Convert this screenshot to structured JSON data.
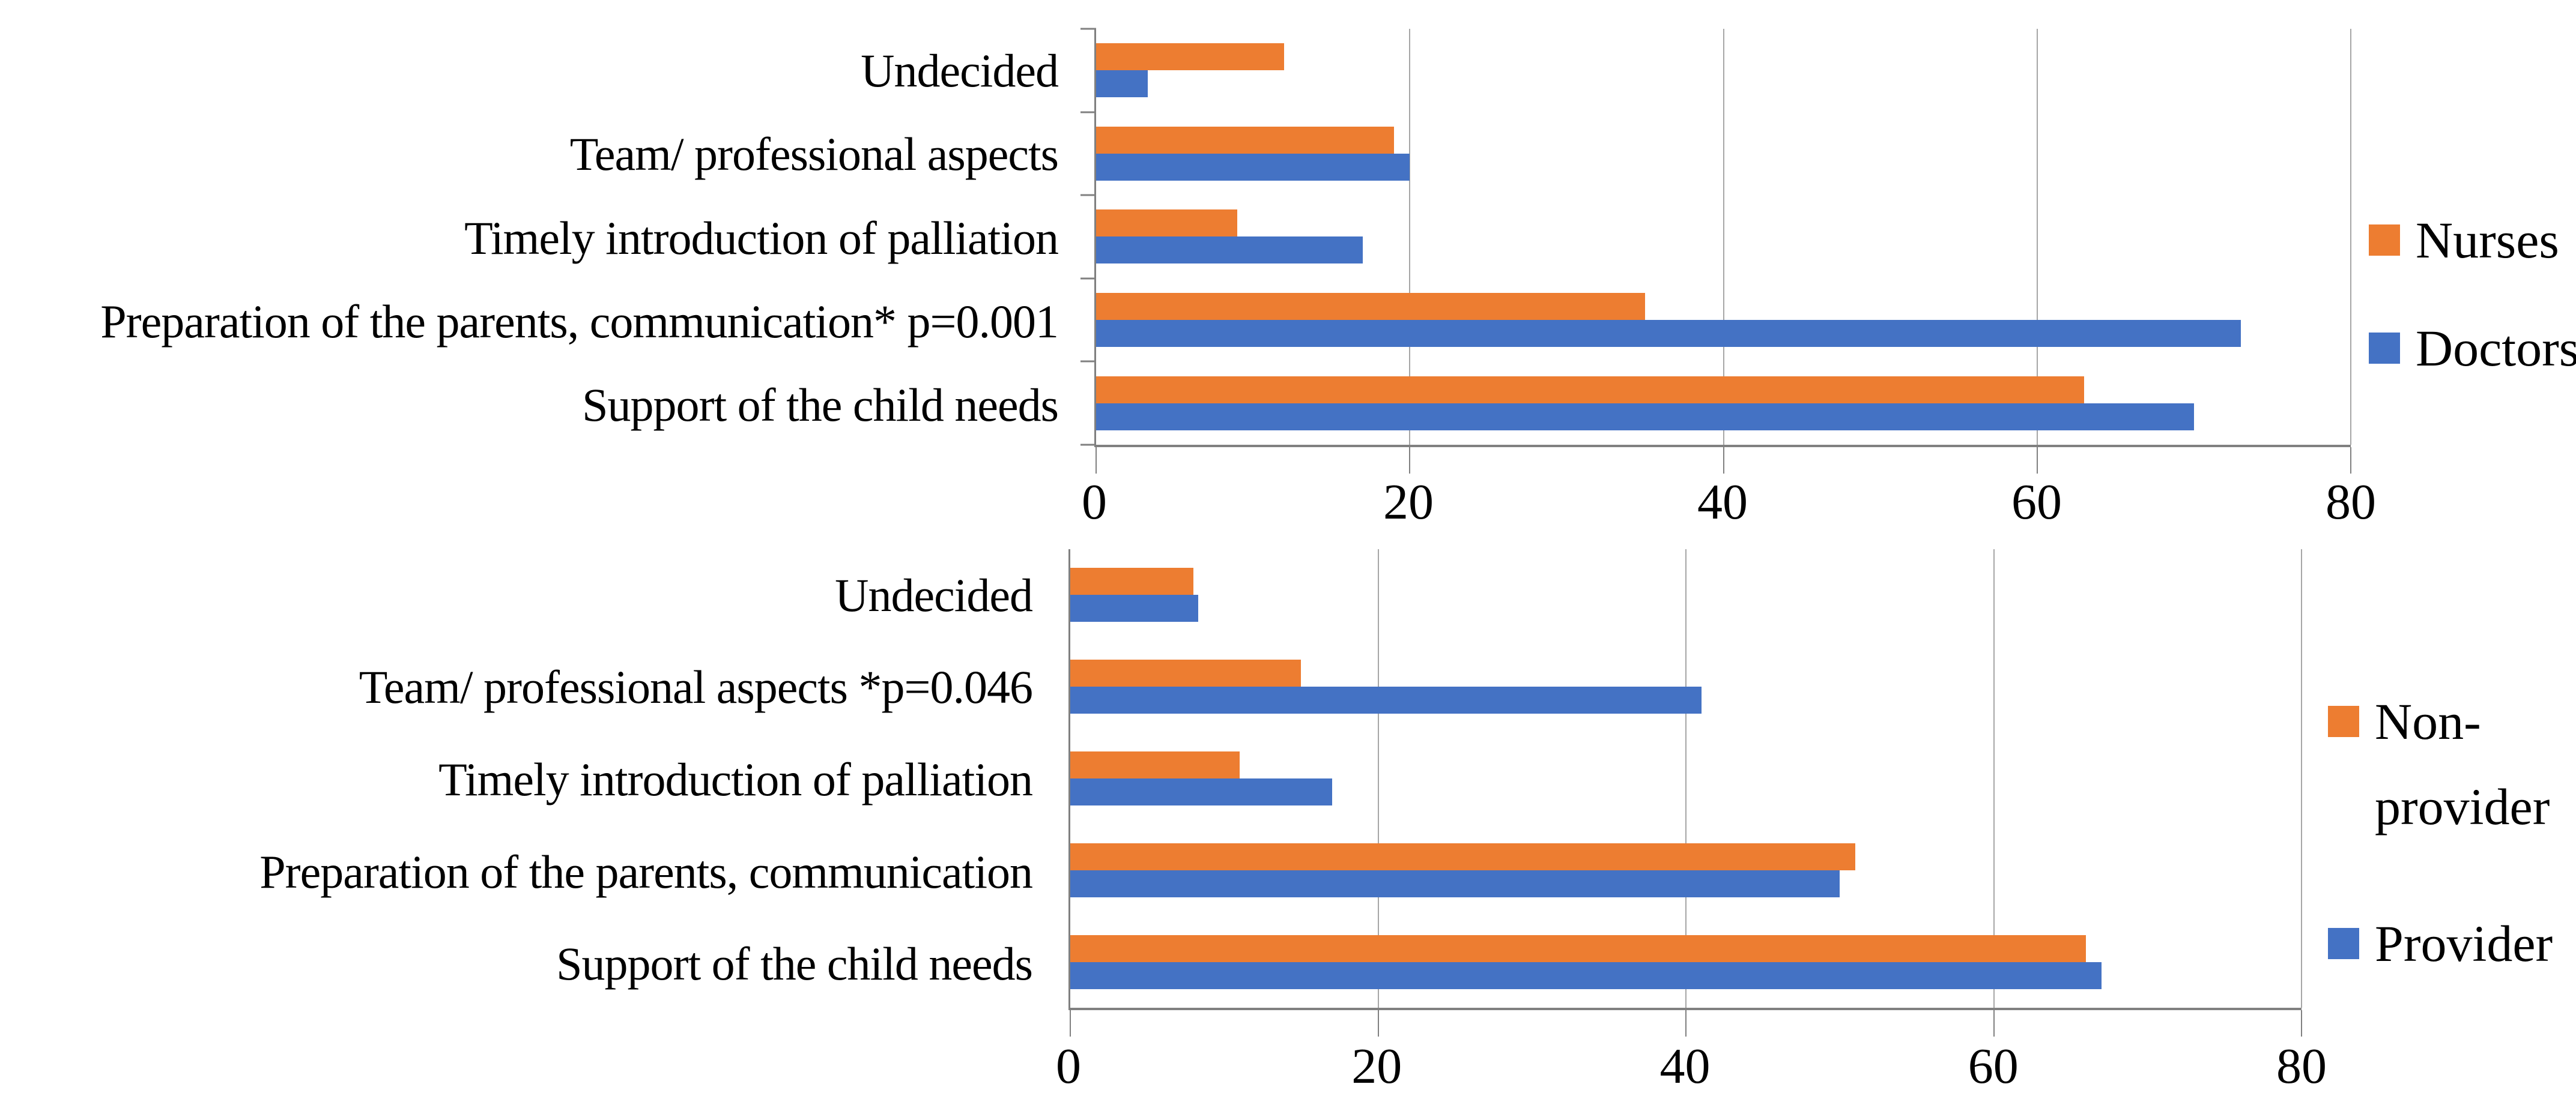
{
  "figure": {
    "background": "#ffffff",
    "text_color": "#000000",
    "axis_color": "#808080",
    "gridline_color": "#a6a6a6"
  },
  "chart_data": [
    {
      "type": "bar",
      "orientation": "horizontal",
      "categories": [
        "Undecided",
        "Team/ professional aspects",
        "Timely introduction of palliation",
        "Preparation of the parents, communication* p=0.001",
        "Support of the child needs"
      ],
      "series": [
        {
          "name": "Nurses",
          "color": "#ED7D31",
          "values": [
            12,
            19,
            9,
            35,
            63
          ]
        },
        {
          "name": "Doctors",
          "color": "#4472C4",
          "values": [
            3.3,
            20,
            17,
            73,
            70
          ]
        }
      ],
      "xlim": [
        0,
        80
      ],
      "xticks": [
        0,
        20,
        40,
        60,
        80
      ],
      "grid": true,
      "category_axis_ticks": true,
      "legend_position": "right"
    },
    {
      "type": "bar",
      "orientation": "horizontal",
      "categories": [
        "Undecided",
        "Team/ professional aspects *p=0.046",
        "Timely introduction of palliation",
        "Preparation of the parents, communication",
        "Support of the child needs"
      ],
      "series": [
        {
          "name": "Non-provider",
          "color": "#ED7D31",
          "values": [
            8,
            15,
            11,
            51,
            66
          ]
        },
        {
          "name": "Provider",
          "color": "#4472C4",
          "values": [
            8.3,
            41,
            17,
            50,
            67
          ]
        }
      ],
      "xlim": [
        0,
        80
      ],
      "xticks": [
        0,
        20,
        40,
        60,
        80
      ],
      "grid": true,
      "category_axis_ticks": false,
      "legend_position": "right"
    }
  ]
}
